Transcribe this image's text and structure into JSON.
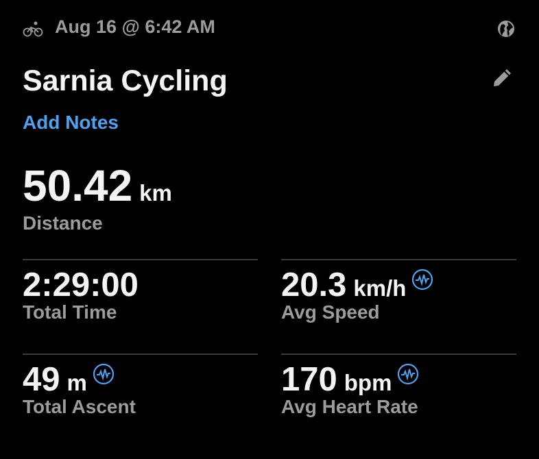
{
  "header": {
    "activity_icon": "bicycle-icon",
    "date": "Aug 16 @ 6:42 AM",
    "privacy_icon": "globe-icon",
    "edit_icon": "pencil-icon"
  },
  "activity": {
    "title": "Sarnia Cycling",
    "add_notes": "Add Notes"
  },
  "distance": {
    "value": "50.42",
    "unit": "km",
    "label": "Distance"
  },
  "stats": [
    {
      "value": "2:29:00",
      "unit": "",
      "label": "Total Time",
      "has_chart_icon": false
    },
    {
      "value": "20.3",
      "unit": "km/h",
      "label": "Avg Speed",
      "has_chart_icon": true
    },
    {
      "value": "49",
      "unit": "m",
      "label": "Total Ascent",
      "has_chart_icon": true
    },
    {
      "value": "170",
      "unit": "bpm",
      "label": "Avg Heart Rate",
      "has_chart_icon": true
    }
  ],
  "colors": {
    "accent": "#4ba3f2",
    "background": "#000000",
    "secondary_text": "#9c9c9c"
  }
}
